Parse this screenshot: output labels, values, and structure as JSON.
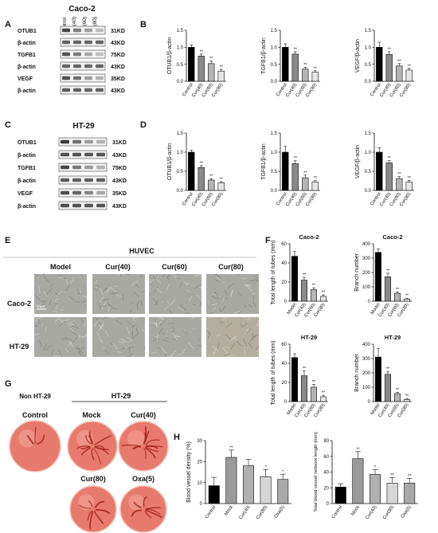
{
  "panels": {
    "A": "A",
    "B": "B",
    "C": "C",
    "D": "D",
    "E": "E",
    "F": "F",
    "G": "G",
    "H": "H"
  },
  "colors": {
    "model": "#000000",
    "cur40": "#8a8a8a",
    "cur60": "#b5b5b5",
    "cur80": "#e6e6e6",
    "mock": "#9a9a9a",
    "oxa": "#bdbdbd",
    "control": "#000000"
  },
  "blots": [
    {
      "title": "Caco-2",
      "lanes": [
        "Control",
        "Cur(40)",
        "Cur(60)",
        "Cur(80)"
      ],
      "rows": [
        {
          "name": "OTUB1",
          "size": "31KD"
        },
        {
          "name": "β-actin",
          "size": "43KD"
        },
        {
          "name": "TGFB1",
          "size": "75KD"
        },
        {
          "name": "β-actin",
          "size": "43KD"
        },
        {
          "name": "VEGF",
          "size": "35KD"
        },
        {
          "name": "β-actin",
          "size": "43KD"
        }
      ]
    },
    {
      "title": "HT-29",
      "lanes": [],
      "rows": [
        {
          "name": "OTUB1",
          "size": "31KD"
        },
        {
          "name": "β-actin",
          "size": "43KD"
        },
        {
          "name": "TGFB1",
          "size": "75KD"
        },
        {
          "name": "β-actin",
          "size": "43KD"
        },
        {
          "name": "VEGF",
          "size": "35KD"
        },
        {
          "name": "β-actin",
          "size": "43KD"
        }
      ]
    }
  ],
  "images": {
    "huvec_title": "HUVEC",
    "cols": [
      "Model",
      "Cur(40)",
      "Cur(60)",
      "Cur(80)"
    ],
    "rows": [
      "Caco-2",
      "HT-29"
    ],
    "scale_bar": "50μm",
    "cam_non": "Non HT-29",
    "cam_ht": "HT-29",
    "cam_labels": [
      "Control",
      "Mock",
      "Cur(40)",
      "Cur(80)",
      "Oxa(5)"
    ]
  },
  "chart_data": [
    {
      "id": "B1",
      "type": "bar",
      "categories": [
        "Control",
        "Cur(40)",
        "Cur(60)",
        "Cur(80)"
      ],
      "values": [
        1.0,
        0.74,
        0.52,
        0.3
      ],
      "errors": [
        0.07,
        0.06,
        0.08,
        0.05
      ],
      "sig": [
        "",
        "**",
        "**",
        "**"
      ],
      "ylabel": "OTUB1/β-actin",
      "ylim": [
        0,
        1.5
      ],
      "yticks": [
        "0.0",
        "0.5",
        "1.0",
        "1.5"
      ]
    },
    {
      "id": "B2",
      "type": "bar",
      "categories": [
        "Control",
        "Cur(40)",
        "Cur(60)",
        "Cur(80)"
      ],
      "values": [
        1.0,
        0.8,
        0.36,
        0.27
      ],
      "errors": [
        0.1,
        0.07,
        0.05,
        0.04
      ],
      "sig": [
        "",
        "**",
        "**",
        "**"
      ],
      "ylabel": "TGFB1/β-actin",
      "ylim": [
        0,
        1.5
      ],
      "yticks": [
        "0.0",
        "0.5",
        "1.0",
        "1.5"
      ]
    },
    {
      "id": "B3",
      "type": "bar",
      "categories": [
        "Control",
        "Cur(40)",
        "Cur(60)",
        "Cur(80)"
      ],
      "values": [
        1.0,
        0.79,
        0.45,
        0.33
      ],
      "errors": [
        0.15,
        0.08,
        0.07,
        0.05
      ],
      "sig": [
        "",
        "**",
        "**",
        "**"
      ],
      "ylabel": "VEGF/β-actin",
      "ylim": [
        0,
        1.5
      ],
      "yticks": [
        "0.0",
        "0.5",
        "1.0",
        "1.5"
      ]
    },
    {
      "id": "D1",
      "type": "bar",
      "categories": [
        "Control",
        "Cur(40)",
        "Cur(60)",
        "Cur(80)"
      ],
      "values": [
        1.0,
        0.6,
        0.27,
        0.2
      ],
      "errors": [
        0.05,
        0.05,
        0.04,
        0.03
      ],
      "sig": [
        "",
        "**",
        "**",
        "**"
      ],
      "ylabel": "OTUB1/β-actin",
      "ylim": [
        0,
        1.5
      ],
      "yticks": [
        "0.0",
        "0.5",
        "1.0",
        "1.5"
      ]
    },
    {
      "id": "D2",
      "type": "bar",
      "categories": [
        "Control",
        "Cur(40)",
        "Cur(60)",
        "Cur(80)"
      ],
      "values": [
        1.0,
        0.7,
        0.33,
        0.22
      ],
      "errors": [
        0.15,
        0.08,
        0.07,
        0.04
      ],
      "sig": [
        "",
        "**",
        "**",
        "**"
      ],
      "ylabel": "TGFB1/β-actin",
      "ylim": [
        0,
        1.5
      ],
      "yticks": [
        "0.0",
        "0.5",
        "1.0",
        "1.5"
      ]
    },
    {
      "id": "D3",
      "type": "bar",
      "categories": [
        "Control",
        "Cur(40)",
        "Cur(60)",
        "Cur(80)"
      ],
      "values": [
        1.0,
        0.72,
        0.31,
        0.22
      ],
      "errors": [
        0.12,
        0.06,
        0.05,
        0.04
      ],
      "sig": [
        "",
        "**",
        "**",
        "**"
      ],
      "ylabel": "VEGF/β-actin",
      "ylim": [
        0,
        1.5
      ],
      "yticks": [
        "0.0",
        "0.5",
        "1.0",
        "1.5"
      ]
    },
    {
      "id": "F1",
      "type": "bar",
      "title": "Caco-2",
      "categories": [
        "Model",
        "Cur(40)",
        "Cur(60)",
        "Cur(80)"
      ],
      "values": [
        47,
        22,
        12,
        5
      ],
      "errors": [
        5,
        3,
        2,
        1.5
      ],
      "sig": [
        "",
        "**",
        "**",
        "**"
      ],
      "ylabel": "Total length of tubes (mm)",
      "ylim": [
        0,
        60
      ],
      "yticks": [
        "0",
        "20",
        "40",
        "60"
      ]
    },
    {
      "id": "F2",
      "type": "bar",
      "title": "Caco-2",
      "categories": [
        "Model",
        "Cur(40)",
        "Cur(60)",
        "Cur(80)"
      ],
      "values": [
        340,
        170,
        55,
        15
      ],
      "errors": [
        25,
        25,
        10,
        6
      ],
      "sig": [
        "",
        "**",
        "**",
        "**"
      ],
      "ylabel": "Branch number",
      "ylim": [
        0,
        400
      ],
      "yticks": [
        "0",
        "100",
        "200",
        "300",
        "400"
      ]
    },
    {
      "id": "F3",
      "type": "bar",
      "title": "HT-29",
      "categories": [
        "Model",
        "Cur(40)",
        "Cur(60)",
        "Cur(80)"
      ],
      "values": [
        46,
        27,
        15,
        5
      ],
      "errors": [
        4,
        5,
        3,
        1.5
      ],
      "sig": [
        "",
        "**",
        "**",
        "**"
      ],
      "ylabel": "Total length of tubes (mm)",
      "ylim": [
        0,
        60
      ],
      "yticks": [
        "0",
        "20",
        "40",
        "60"
      ]
    },
    {
      "id": "F4",
      "type": "bar",
      "title": "HT-29",
      "categories": [
        "Model",
        "Cur(40)",
        "Cur(60)",
        "Cur(80)"
      ],
      "values": [
        310,
        190,
        55,
        15
      ],
      "errors": [
        60,
        20,
        10,
        6
      ],
      "sig": [
        "",
        "**",
        "**",
        "**"
      ],
      "ylabel": "Branch number",
      "ylim": [
        0,
        400
      ],
      "yticks": [
        "0",
        "100",
        "200",
        "300",
        "400"
      ]
    },
    {
      "id": "H1",
      "type": "bar",
      "categories": [
        "Control",
        "Mock",
        "Cur(40)",
        "Cur(80)",
        "Oxa(5)"
      ],
      "values": [
        8.5,
        22,
        18,
        12.8,
        11.5
      ],
      "errors": [
        4,
        3.5,
        3,
        3.5,
        2.5
      ],
      "sig": [
        "",
        "**",
        "",
        "*",
        "*"
      ],
      "ylabel": "Blood vessel density (%)",
      "ylim": [
        0,
        30
      ],
      "yticks": [
        "0",
        "10",
        "20",
        "30"
      ]
    },
    {
      "id": "H2",
      "type": "bar",
      "categories": [
        "Control",
        "Mock",
        "Cur(40)",
        "Cur(80)",
        "Oxa(5)"
      ],
      "values": [
        21,
        57,
        37,
        26,
        26
      ],
      "errors": [
        4,
        9,
        6,
        7,
        6
      ],
      "sig": [
        "",
        "**",
        "*",
        "**",
        "**"
      ],
      "ylabel": "Total blood vessel network length (mm)",
      "ylim": [
        0,
        80
      ],
      "yticks": [
        "0",
        "20",
        "40",
        "60",
        "80"
      ]
    }
  ]
}
